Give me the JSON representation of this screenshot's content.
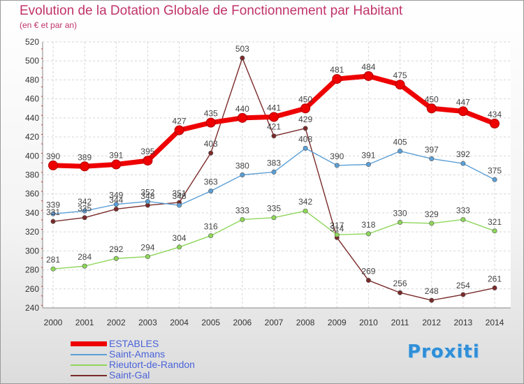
{
  "title": "Evolution de la Dotation Globale de Fonctionnement par Habitant",
  "subtitle": "(en € et par an)",
  "brand": "Proxiti",
  "chart_data": {
    "type": "line",
    "x": [
      "2000",
      "2001",
      "2002",
      "2003",
      "2004",
      "2005",
      "2006",
      "2007",
      "2008",
      "2009",
      "2010",
      "2011",
      "2012",
      "2013",
      "2014"
    ],
    "ylim": [
      240,
      520
    ],
    "yticks": [
      240,
      260,
      280,
      300,
      320,
      340,
      360,
      380,
      400,
      420,
      440,
      460,
      480,
      500,
      520
    ],
    "grid": true,
    "legend_position": "bottom-left",
    "series": [
      {
        "name": "ESTABLES",
        "color": "#ee0000",
        "values": [
          390,
          389,
          391,
          395,
          427,
          435,
          440,
          441,
          450,
          481,
          484,
          475,
          450,
          447,
          434
        ]
      },
      {
        "name": "Saint-Amans",
        "color": "#5b9fd6",
        "values": [
          339,
          342,
          349,
          352,
          348,
          363,
          380,
          383,
          408,
          390,
          391,
          405,
          397,
          392,
          375
        ]
      },
      {
        "name": "Rieutort-de-Randon",
        "color": "#8ed65a",
        "values": [
          281,
          284,
          292,
          294,
          304,
          316,
          333,
          335,
          342,
          317,
          318,
          330,
          329,
          333,
          321
        ]
      },
      {
        "name": "Saint-Gal",
        "color": "#7a2a2a",
        "values": [
          331,
          335,
          344,
          348,
          351,
          403,
          503,
          421,
          429,
          314,
          269,
          256,
          248,
          254,
          261
        ]
      }
    ]
  }
}
